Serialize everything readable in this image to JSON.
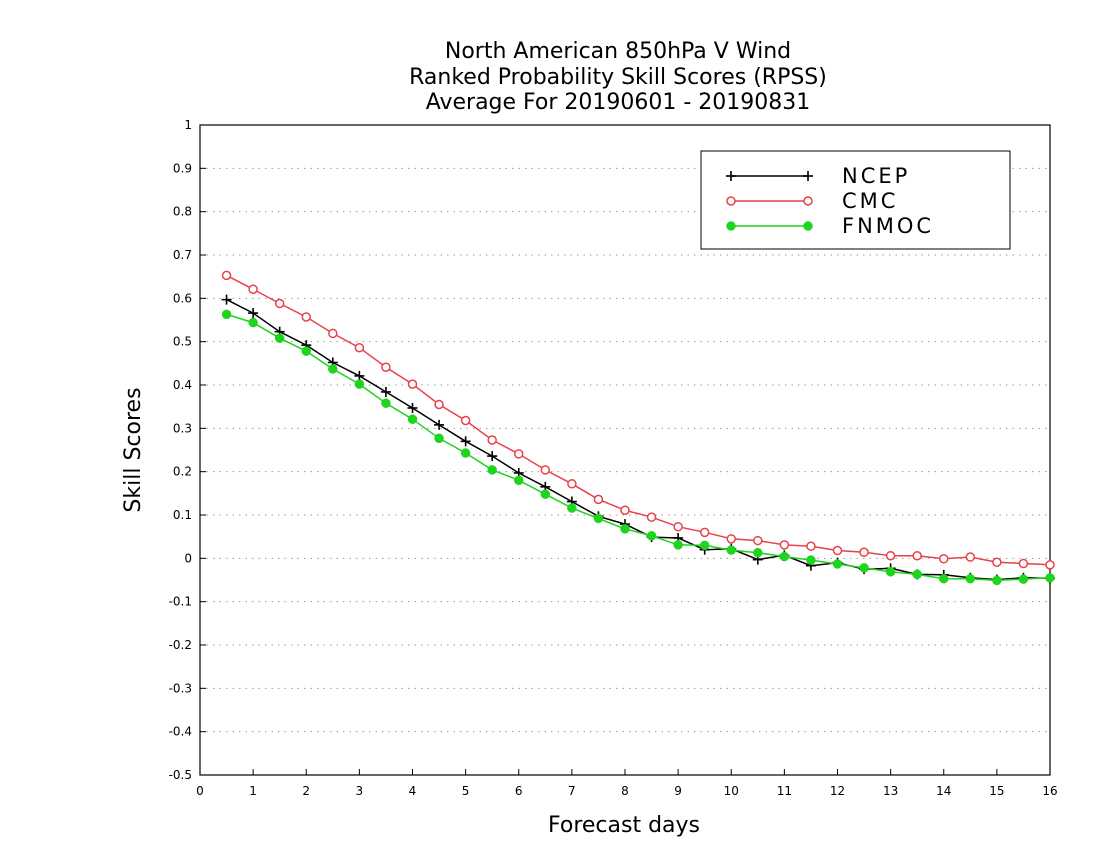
{
  "chart_data": {
    "type": "line",
    "title": [
      "North American 850hPa V Wind",
      "Ranked Probability Skill Scores (RPSS)",
      "Average For 20190601 - 20190831"
    ],
    "xlabel": "Forecast days",
    "ylabel": "Skill Scores",
    "xlim": [
      0,
      16
    ],
    "ylim": [
      -0.5,
      1
    ],
    "xticks": [
      "0",
      "1",
      "2",
      "3",
      "4",
      "5",
      "6",
      "7",
      "8",
      "9",
      "10",
      "11",
      "12",
      "13",
      "14",
      "15",
      "16"
    ],
    "yticks": [
      "1",
      "0.9",
      "0.8",
      "0.7",
      "0.6",
      "0.5",
      "0.4",
      "0.3",
      "0.2",
      "0.1",
      "0",
      "-0.1",
      "-0.2",
      "-0.3",
      "-0.4",
      "-0.5"
    ],
    "grid": true,
    "legend_position": "top-right",
    "x": [
      0.5,
      1,
      1.5,
      2,
      2.5,
      3,
      3.5,
      4,
      4.5,
      5,
      5.5,
      6,
      6.5,
      7,
      7.5,
      8,
      8.5,
      9,
      9.5,
      10,
      10.5,
      11,
      11.5,
      12,
      12.5,
      13,
      13.5,
      14,
      14.5,
      15,
      15.5,
      16
    ],
    "series": [
      {
        "name": "NCEP",
        "color": "#000000",
        "marker": "plus",
        "values": [
          0.597,
          0.566,
          0.523,
          0.492,
          0.452,
          0.421,
          0.384,
          0.347,
          0.308,
          0.27,
          0.236,
          0.197,
          0.165,
          0.131,
          0.097,
          0.079,
          0.049,
          0.047,
          0.02,
          0.022,
          -0.003,
          0.007,
          -0.017,
          -0.01,
          -0.025,
          -0.023,
          -0.037,
          -0.038,
          -0.045,
          -0.049,
          -0.045,
          -0.046
        ]
      },
      {
        "name": "CMC",
        "color": "#e8414a",
        "marker": "open-circle",
        "values": [
          0.653,
          0.621,
          0.588,
          0.557,
          0.519,
          0.486,
          0.441,
          0.402,
          0.355,
          0.318,
          0.273,
          0.241,
          0.204,
          0.172,
          0.136,
          0.111,
          0.095,
          0.073,
          0.06,
          0.045,
          0.041,
          0.031,
          0.028,
          0.018,
          0.014,
          0.006,
          0.006,
          -0.001,
          0.003,
          -0.009,
          -0.012,
          -0.015
        ]
      },
      {
        "name": "FNMOC",
        "color": "#1ed41e",
        "marker": "filled-circle",
        "values": [
          0.563,
          0.544,
          0.508,
          0.478,
          0.437,
          0.402,
          0.358,
          0.321,
          0.277,
          0.243,
          0.204,
          0.18,
          0.148,
          0.116,
          0.092,
          0.068,
          0.052,
          0.031,
          0.03,
          0.019,
          0.013,
          0.004,
          -0.004,
          -0.013,
          -0.022,
          -0.031,
          -0.037,
          -0.047,
          -0.047,
          -0.051,
          -0.048,
          -0.045
        ]
      }
    ]
  }
}
